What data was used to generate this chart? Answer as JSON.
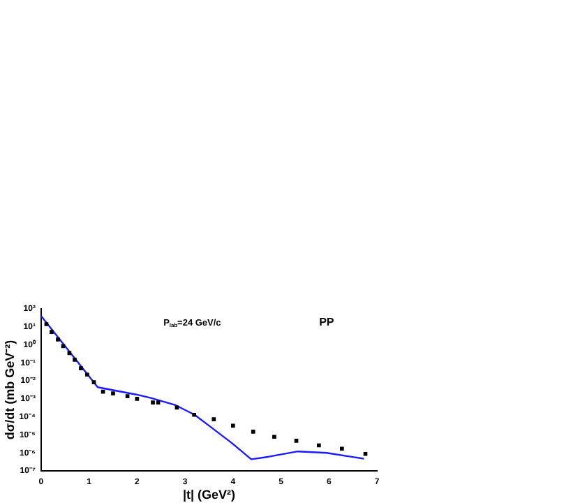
{
  "chart_data": {
    "type": "line",
    "xlabel": "|t| (GeV²)",
    "ylabel": "dσ/dt (mb GeV⁻²)",
    "annotations": [
      "P$_{lab}$=24 GeV/c",
      "PP"
    ],
    "xlim": [
      0,
      7
    ],
    "xticks": [
      0,
      1,
      2,
      3,
      4,
      5,
      6,
      7
    ],
    "ylim": [
      1e-07,
      100
    ],
    "yticks": [
      {
        "value": 1e-07,
        "label": "10⁻⁷"
      },
      {
        "value": 1e-06,
        "label": "10⁻⁶"
      },
      {
        "value": 1e-05,
        "label": "10⁻⁵"
      },
      {
        "value": 0.0001,
        "label": "10⁻⁴"
      },
      {
        "value": 0.001,
        "label": "10⁻³"
      },
      {
        "value": 0.01,
        "label": "10⁻²"
      },
      {
        "value": 0.1,
        "label": "10⁻¹"
      },
      {
        "value": 1,
        "label": "10⁰"
      },
      {
        "value": 10,
        "label": "10¹"
      },
      {
        "value": 100,
        "label": "10²"
      }
    ],
    "log": "y",
    "grid": false,
    "legend": false,
    "series": [
      {
        "type": "scatter",
        "color": "#000000",
        "marker": "square",
        "x": [
          0.11,
          0.22,
          0.35,
          0.46,
          0.59,
          0.7,
          0.83,
          0.96,
          1.1,
          1.29,
          1.5,
          1.8,
          2.0,
          2.33,
          2.44,
          2.83,
          3.19,
          3.6,
          4.0,
          4.42,
          4.86,
          5.32,
          5.79,
          6.27,
          6.76
        ],
        "values": [
          14,
          5.2,
          2,
          0.85,
          0.35,
          0.15,
          0.05,
          0.022,
          0.0083,
          0.0025,
          0.002,
          0.0014,
          0.001,
          0.00063,
          0.00063,
          0.00033,
          0.00013,
          7.4e-05,
          3.2e-05,
          1.5e-05,
          7.8e-06,
          4.7e-06,
          2.6e-06,
          1.7e-06,
          8.7e-07
        ]
      },
      {
        "color": "#1a1aff",
        "marker": "none",
        "x": [
          0,
          1.18,
          2.0,
          2.3,
          2.79,
          3.2,
          3.53,
          3.97,
          4.38,
          4.73,
          5.35,
          5.95,
          6.73
        ],
        "values": [
          40,
          0.0044,
          0.0017,
          0.0011,
          0.00046,
          0.00013,
          2.8e-05,
          3.6e-06,
          4.4e-07,
          6e-07,
          1.2e-06,
          1e-06,
          4.7e-07
        ]
      }
    ]
  }
}
